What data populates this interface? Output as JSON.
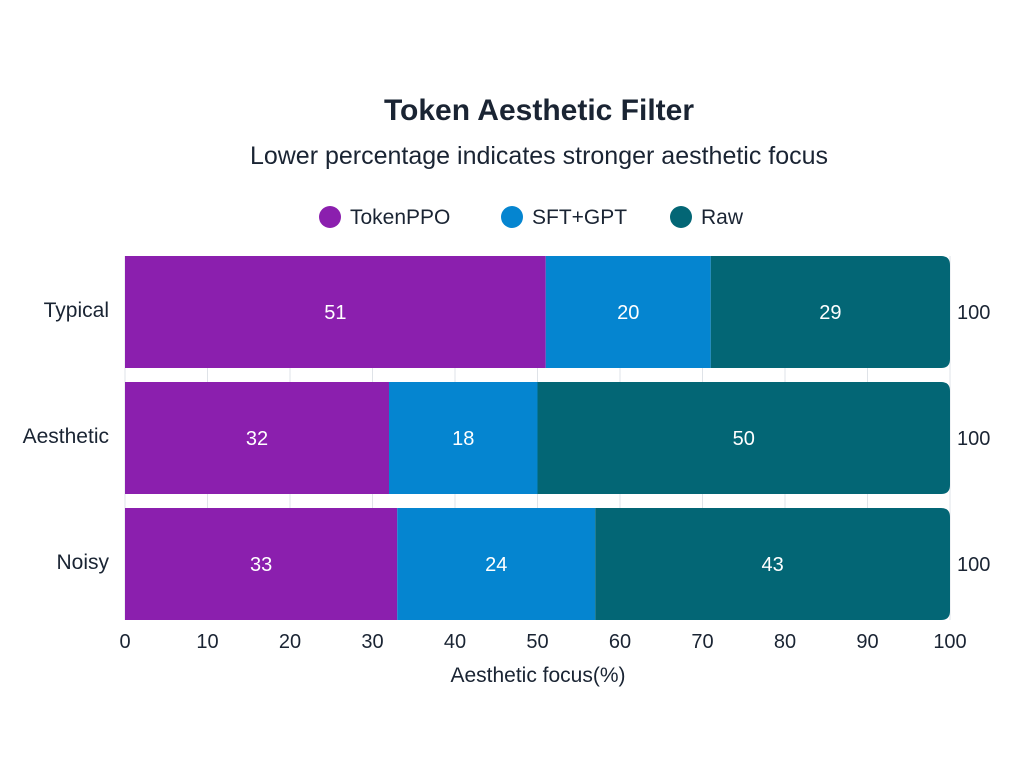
{
  "chart_data": {
    "type": "bar",
    "orientation": "horizontal",
    "stacked": true,
    "title": "Token Aesthetic Filter",
    "subtitle": "Lower percentage indicates stronger aesthetic focus",
    "xlabel": "Aesthetic focus(%)",
    "ylabel": "",
    "xlim": [
      0,
      100
    ],
    "xticks": [
      "0",
      "10",
      "20",
      "30",
      "40",
      "50",
      "60",
      "70",
      "80",
      "90",
      "100"
    ],
    "categories": [
      "Typical",
      "Aesthetic",
      "Noisy"
    ],
    "series": [
      {
        "name": "TokenPPO",
        "color": "#8b1fae",
        "values": [
          51,
          32,
          33
        ]
      },
      {
        "name": "SFT+GPT",
        "color": "#0585d0",
        "values": [
          20,
          18,
          24
        ]
      },
      {
        "name": "Raw",
        "color": "#036675",
        "values": [
          29,
          50,
          43
        ]
      }
    ],
    "totals": [
      "100",
      "100",
      "100"
    ],
    "legend": "top-center",
    "grid": true
  }
}
